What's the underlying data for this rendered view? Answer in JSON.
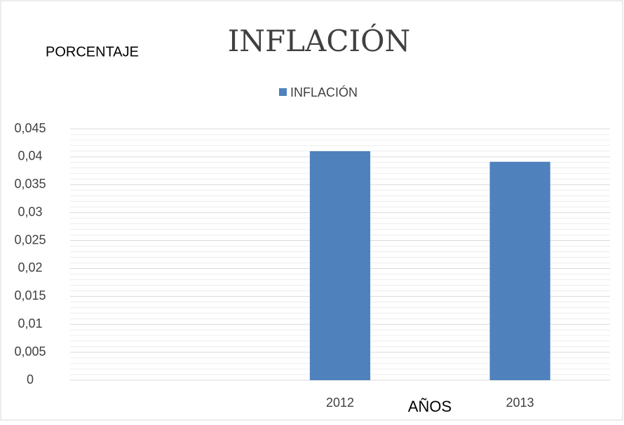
{
  "chart_data": {
    "type": "bar",
    "title": "INFLACIÓN",
    "y_label": "PORCENTAJE",
    "x_label": "AÑOS",
    "categories": [
      null,
      "2012",
      "2013"
    ],
    "series": [
      {
        "name": "INFLACIÓN",
        "color": "#4f81bd",
        "values": [
          null,
          0.041,
          0.0391
        ]
      }
    ],
    "ylim": [
      0,
      0.045
    ],
    "yticks": [
      0,
      {
        "value": 0.005,
        "label": "0,005"
      },
      {
        "value": 0.01,
        "label": "0,01"
      },
      {
        "value": 0.015,
        "label": "0,015"
      },
      {
        "value": 0.02,
        "label": "0,02"
      },
      {
        "value": 0.025,
        "label": "0,025"
      },
      {
        "value": 0.03,
        "label": "0,03"
      },
      {
        "value": 0.035,
        "label": "0,035"
      },
      {
        "value": 0.04,
        "label": "0,04"
      },
      {
        "value": 0.045,
        "label": "0,045"
      }
    ],
    "grid": true,
    "minor_grid": true,
    "legend": "top"
  }
}
